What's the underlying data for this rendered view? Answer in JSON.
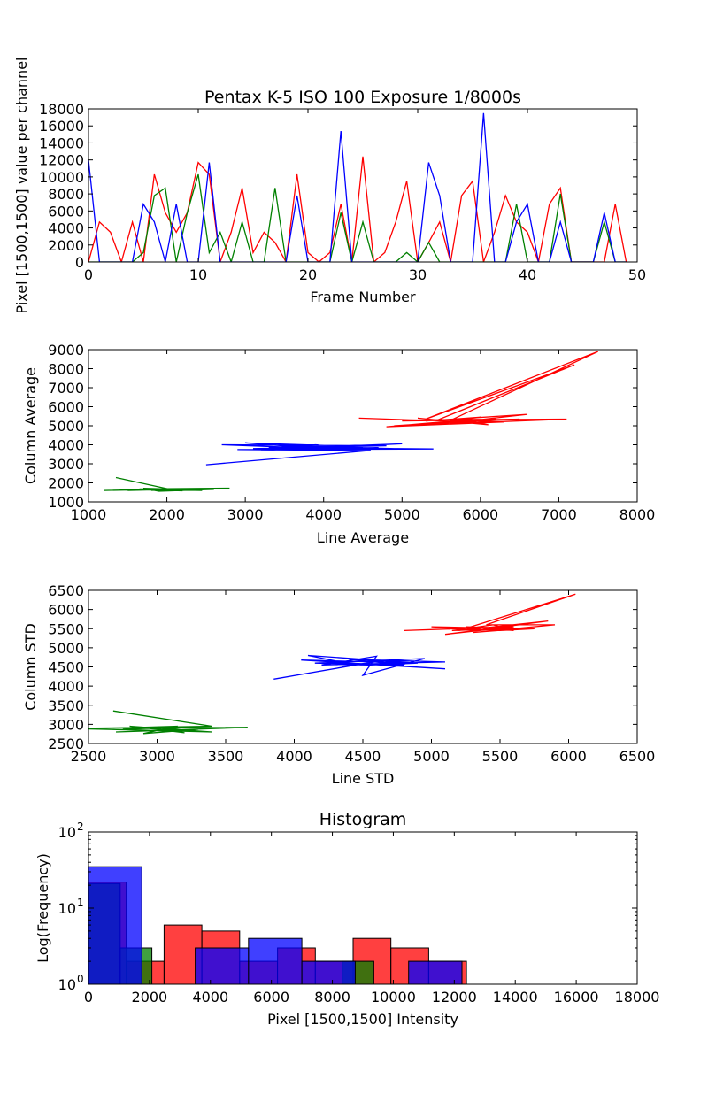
{
  "chart_data": [
    {
      "type": "line",
      "title": "Pentax K-5 ISO 100 Exposure 1/8000s",
      "xlabel": "Frame Number",
      "ylabel": "Pixel [1500,1500] value per channel",
      "xlim": [
        0,
        50
      ],
      "ylim": [
        0,
        18000
      ],
      "xticks": [
        "0",
        "10",
        "20",
        "30",
        "40",
        "50"
      ],
      "yticks": [
        "0",
        "2000",
        "4000",
        "6000",
        "8000",
        "10000",
        "12000",
        "14000",
        "16000",
        "18000"
      ],
      "x": [
        0,
        1,
        2,
        3,
        4,
        5,
        6,
        7,
        8,
        9,
        10,
        11,
        12,
        13,
        14,
        15,
        16,
        17,
        18,
        19,
        20,
        21,
        22,
        23,
        24,
        25,
        26,
        27,
        28,
        29,
        30,
        31,
        32,
        33,
        34,
        35,
        36,
        37,
        38,
        39,
        40,
        41,
        42,
        43,
        44,
        45,
        46,
        47,
        48,
        49
      ],
      "series": [
        {
          "name": "red",
          "color": "#ff0000",
          "values": [
            0,
            4700,
            3500,
            0,
            4700,
            0,
            10300,
            5800,
            3500,
            5800,
            11700,
            10300,
            0,
            3500,
            8700,
            1100,
            3500,
            2300,
            0,
            10300,
            1100,
            0,
            1100,
            6800,
            0,
            12400,
            0,
            1100,
            4700,
            9500,
            0,
            2300,
            4700,
            0,
            7800,
            9500,
            0,
            3500,
            7800,
            4700,
            3500,
            0,
            6800,
            8700,
            0,
            0,
            0,
            0,
            6800,
            0
          ]
        },
        {
          "name": "green",
          "color": "#008000",
          "values": [
            0,
            0,
            0,
            0,
            0,
            1100,
            7800,
            8700,
            0,
            5800,
            10300,
            1100,
            3500,
            0,
            4700,
            0,
            0,
            8700,
            0,
            0,
            0,
            0,
            0,
            5800,
            0,
            4700,
            0,
            0,
            0,
            1100,
            0,
            2300,
            0,
            0,
            0,
            0,
            0,
            0,
            0,
            6800,
            0,
            0,
            0,
            8000,
            0,
            0,
            0,
            4700,
            0,
            0
          ]
        },
        {
          "name": "blue",
          "color": "#0000ff",
          "values": [
            12000,
            0,
            0,
            0,
            0,
            6800,
            4700,
            0,
            6800,
            0,
            0,
            11700,
            0,
            0,
            0,
            0,
            0,
            0,
            0,
            7800,
            0,
            0,
            0,
            15400,
            0,
            0,
            0,
            0,
            0,
            0,
            0,
            11700,
            7800,
            0,
            0,
            0,
            17500,
            0,
            0,
            4700,
            6800,
            0,
            0,
            4700,
            0,
            0,
            0,
            5800,
            0,
            0
          ]
        }
      ]
    },
    {
      "type": "line",
      "title": "",
      "xlabel": "Line Average",
      "ylabel": "Column Average",
      "xlim": [
        1000,
        8000
      ],
      "ylim": [
        1000,
        9000
      ],
      "xticks": [
        "1000",
        "2000",
        "3000",
        "4000",
        "5000",
        "6000",
        "7000",
        "8000"
      ],
      "yticks": [
        "1000",
        "2000",
        "3000",
        "4000",
        "5000",
        "6000",
        "7000",
        "8000",
        "9000"
      ],
      "series": [
        {
          "name": "green",
          "color": "#008000",
          "points": [
            [
              1350,
              2280
            ],
            [
              2050,
              1650
            ],
            [
              1800,
              1600
            ],
            [
              2400,
              1700
            ],
            [
              1200,
              1600
            ],
            [
              2800,
              1720
            ],
            [
              1650,
              1680
            ],
            [
              2200,
              1580
            ],
            [
              1500,
              1650
            ],
            [
              2600,
              1660
            ],
            [
              1900,
              1560
            ],
            [
              1700,
              1710
            ],
            [
              2300,
              1640
            ],
            [
              1400,
              1620
            ],
            [
              2000,
              1690
            ],
            [
              2450,
              1600
            ],
            [
              1600,
              1650
            ],
            [
              2150,
              1700
            ],
            [
              1850,
              1620
            ],
            [
              2350,
              1680
            ],
            [
              1500,
              1600
            ],
            [
              2050,
              1650
            ]
          ]
        },
        {
          "name": "blue",
          "color": "#0000ff",
          "points": [
            [
              2500,
              2950
            ],
            [
              4600,
              3700
            ],
            [
              3100,
              3800
            ],
            [
              4800,
              3950
            ],
            [
              2700,
              4000
            ],
            [
              3700,
              3850
            ],
            [
              5000,
              4050
            ],
            [
              3200,
              3700
            ],
            [
              4500,
              3900
            ],
            [
              3000,
              4100
            ],
            [
              4100,
              3750
            ],
            [
              3500,
              3950
            ],
            [
              4900,
              3800
            ],
            [
              3300,
              3850
            ],
            [
              3900,
              4000
            ],
            [
              4400,
              3700
            ],
            [
              2900,
              3750
            ],
            [
              5400,
              3780
            ],
            [
              3600,
              3850
            ],
            [
              4200,
              3950
            ],
            [
              3400,
              3750
            ],
            [
              4700,
              3850
            ],
            [
              3800,
              3800
            ],
            [
              4300,
              3900
            ]
          ]
        },
        {
          "name": "red",
          "color": "#ff0000",
          "points": [
            [
              4450,
              5400
            ],
            [
              5900,
              5200
            ],
            [
              4900,
              5000
            ],
            [
              6200,
              5350
            ],
            [
              5100,
              5300
            ],
            [
              7100,
              5350
            ],
            [
              5500,
              5100
            ],
            [
              6600,
              5600
            ],
            [
              5300,
              5250
            ],
            [
              6000,
              5450
            ],
            [
              5600,
              5250
            ],
            [
              7500,
              8900
            ],
            [
              5300,
              5350
            ],
            [
              7200,
              8200
            ],
            [
              5450,
              5300
            ],
            [
              6300,
              5200
            ],
            [
              4800,
              4950
            ],
            [
              5800,
              5300
            ],
            [
              6100,
              5050
            ],
            [
              5200,
              5400
            ],
            [
              5700,
              5200
            ],
            [
              6500,
              5350
            ],
            [
              5000,
              5250
            ],
            [
              5900,
              5300
            ]
          ]
        }
      ]
    },
    {
      "type": "line",
      "title": "",
      "xlabel": "Line STD",
      "ylabel": "Column STD",
      "xlim": [
        2500,
        6500
      ],
      "ylim": [
        2500,
        6500
      ],
      "xticks": [
        "2500",
        "3000",
        "3500",
        "4000",
        "4500",
        "5000",
        "5500",
        "6000",
        "6500"
      ],
      "yticks": [
        "2500",
        "3000",
        "3500",
        "4000",
        "4500",
        "5000",
        "5500",
        "6000",
        "6500"
      ],
      "series": [
        {
          "name": "green",
          "color": "#008000",
          "points": [
            [
              2680,
              3350
            ],
            [
              3400,
              2950
            ],
            [
              2550,
              2900
            ],
            [
              3660,
              2920
            ],
            [
              2700,
              2800
            ],
            [
              3300,
              2870
            ],
            [
              2900,
              2760
            ],
            [
              3150,
              2950
            ],
            [
              2500,
              2880
            ],
            [
              3400,
              2800
            ],
            [
              2800,
              2950
            ],
            [
              3200,
              2780
            ],
            [
              2950,
              2900
            ],
            [
              3100,
              2820
            ],
            [
              2750,
              2870
            ],
            [
              3250,
              2930
            ],
            [
              3000,
              2850
            ]
          ]
        },
        {
          "name": "blue",
          "color": "#0000ff",
          "points": [
            [
              3850,
              4180
            ],
            [
              4450,
              4550
            ],
            [
              4100,
              4800
            ],
            [
              4900,
              4600
            ],
            [
              4050,
              4680
            ],
            [
              5100,
              4450
            ],
            [
              4300,
              4620
            ],
            [
              4950,
              4720
            ],
            [
              4500,
              4280
            ],
            [
              4600,
              4780
            ],
            [
              4200,
              4550
            ],
            [
              5100,
              4630
            ],
            [
              4400,
              4700
            ],
            [
              4800,
              4550
            ],
            [
              4150,
              4600
            ],
            [
              4700,
              4680
            ],
            [
              4350,
              4520
            ],
            [
              4900,
              4600
            ],
            [
              4550,
              4640
            ]
          ]
        },
        {
          "name": "red",
          "color": "#ff0000",
          "points": [
            [
              4800,
              5450
            ],
            [
              5600,
              5550
            ],
            [
              5100,
              5350
            ],
            [
              5850,
              5700
            ],
            [
              5200,
              5450
            ],
            [
              6050,
              6400
            ],
            [
              5400,
              5600
            ],
            [
              5900,
              5600
            ],
            [
              5300,
              5400
            ],
            [
              5650,
              5500
            ],
            [
              5000,
              5550
            ],
            [
              5500,
              5450
            ],
            [
              5750,
              5500
            ],
            [
              5250,
              5550
            ],
            [
              5600,
              5450
            ],
            [
              5450,
              5600
            ],
            [
              5150,
              5450
            ],
            [
              5550,
              5500
            ]
          ]
        }
      ]
    },
    {
      "type": "bar",
      "subtype": "histogram-log",
      "title": "Histogram",
      "xlabel": "Pixel [1500,1500] Intensity",
      "ylabel": "Log(Frequency)",
      "xlim": [
        0,
        18000
      ],
      "ylim": [
        1,
        100
      ],
      "xticks": [
        "0",
        "2000",
        "4000",
        "6000",
        "8000",
        "10000",
        "12000",
        "14000",
        "16000",
        "18000"
      ],
      "yticks": [
        {
          "value": 1,
          "base": "10",
          "exp": "0"
        },
        {
          "value": 10,
          "base": "10",
          "exp": "1"
        },
        {
          "value": 100,
          "base": "10",
          "exp": "2"
        }
      ],
      "series": [
        {
          "name": "red",
          "color": "#ff0000",
          "bins": [
            [
              0,
              1240,
              22
            ],
            [
              1240,
              2480,
              2
            ],
            [
              2480,
              3720,
              6
            ],
            [
              3720,
              4960,
              5
            ],
            [
              4960,
              6200,
              2
            ],
            [
              6200,
              7440,
              3
            ],
            [
              7440,
              8680,
              2
            ],
            [
              8680,
              9920,
              4
            ],
            [
              9920,
              11160,
              3
            ],
            [
              11160,
              12400,
              2
            ]
          ]
        },
        {
          "name": "green",
          "color": "#008000",
          "bins": [
            [
              0,
              1040,
              21
            ],
            [
              1040,
              2080,
              3
            ],
            [
              8320,
              9360,
              2
            ]
          ]
        },
        {
          "name": "blue",
          "color": "#0000ff",
          "bins": [
            [
              0,
              1750,
              35
            ],
            [
              1750,
              3500,
              1
            ],
            [
              3500,
              5250,
              3
            ],
            [
              5250,
              7000,
              4
            ],
            [
              7000,
              8750,
              2
            ],
            [
              8750,
              10500,
              1
            ],
            [
              10500,
              12250,
              2
            ],
            [
              12250,
              14000,
              1
            ],
            [
              14000,
              15750,
              1
            ],
            [
              15750,
              17500,
              1
            ]
          ]
        }
      ]
    }
  ]
}
